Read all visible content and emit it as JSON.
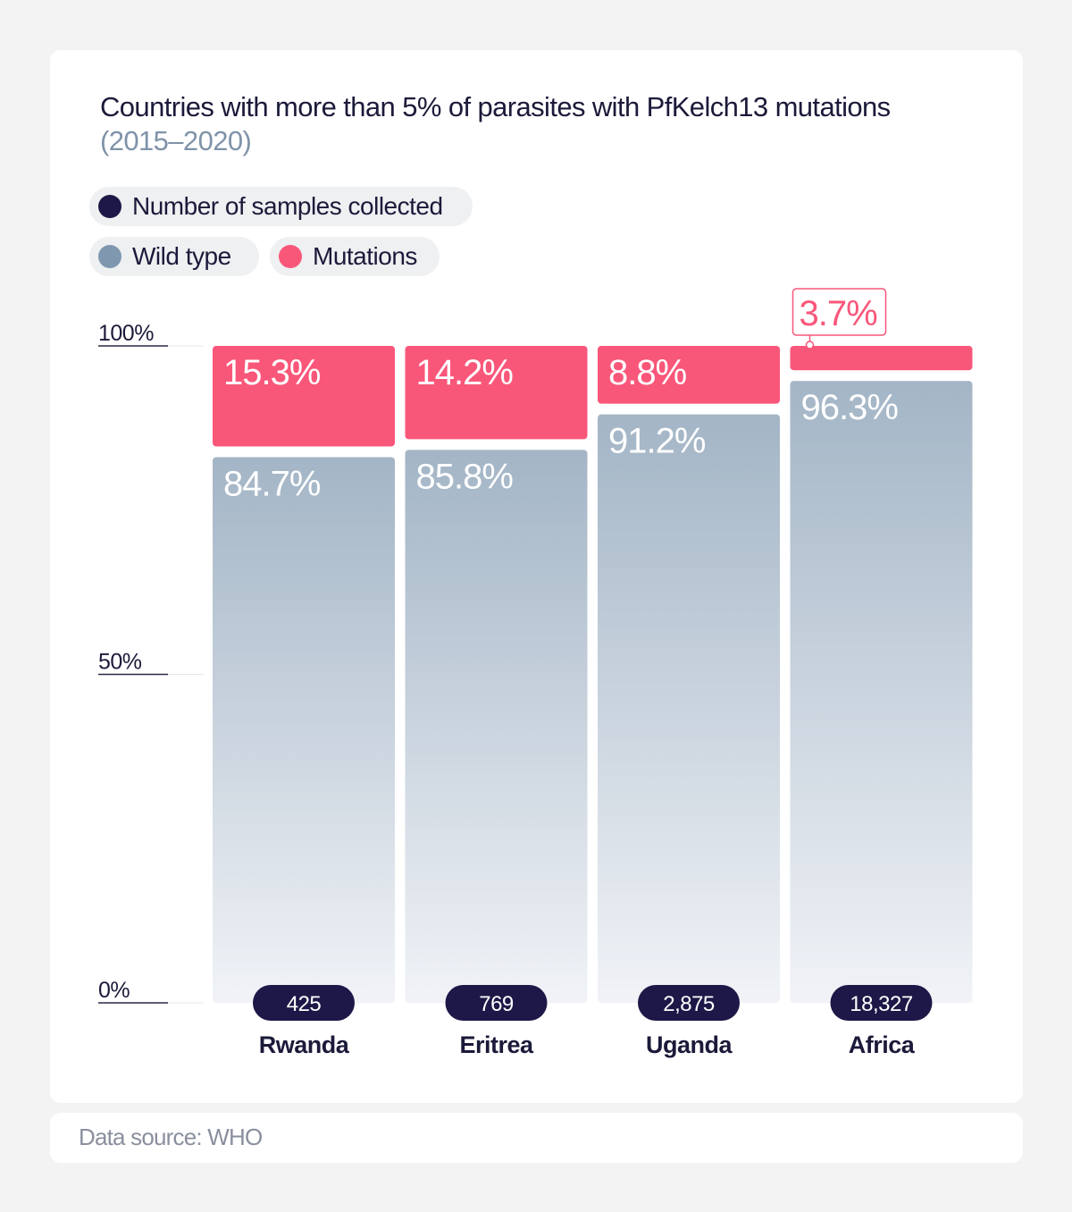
{
  "title": "Countries with more than 5% of parasites with PfKelch13 mutations",
  "subtitle": "(2015–2020)",
  "legend": {
    "samples": "Number of samples collected",
    "wild": "Wild type",
    "mutations": "Mutations"
  },
  "footer": {
    "source": "Data source: WHO"
  },
  "colors": {
    "mutations": "#f9577a",
    "wild_top": "#a3b5c6",
    "wild_bottom": "#f1f3f7",
    "samples": "#1d1847",
    "text_dark": "#1b1a3a"
  },
  "chart_data": {
    "type": "bar",
    "stacked": true,
    "title": "Countries with more than 5% of parasites with PfKelch13 mutations",
    "subtitle": "(2015–2020)",
    "categories": [
      "Rwanda",
      "Eritrea",
      "Uganda",
      "Africa"
    ],
    "series": [
      {
        "name": "Wild type",
        "values": [
          84.7,
          85.8,
          91.2,
          96.3
        ],
        "labels": [
          "84.7%",
          "85.8%",
          "91.2%",
          "96.3%"
        ]
      },
      {
        "name": "Mutations",
        "values": [
          15.3,
          14.2,
          8.8,
          3.7
        ],
        "labels": [
          "15.3%",
          "14.2%",
          "8.8%",
          "3.7%"
        ]
      }
    ],
    "samples": {
      "name": "Number of samples collected",
      "labels": [
        "425",
        "769",
        "2,875",
        "18,327"
      ]
    },
    "yticks": [
      {
        "value": 100,
        "label": "100%"
      },
      {
        "value": 50,
        "label": "50%"
      },
      {
        "value": 0,
        "label": "0%"
      }
    ],
    "ylim": [
      0,
      100
    ],
    "xlabel": "",
    "ylabel": ""
  }
}
